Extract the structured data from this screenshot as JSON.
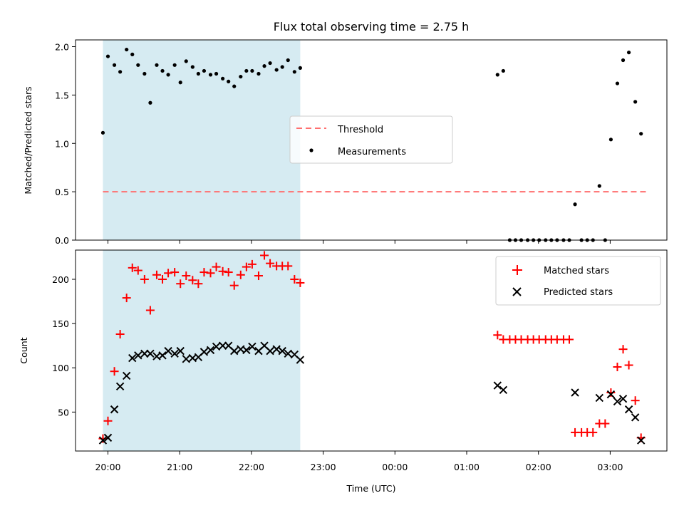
{
  "chart_data": [
    {
      "type": "scatter",
      "title": "Flux total observing time = 2.75 h",
      "xlabel": "",
      "ylabel": "Matched/Predicted stars",
      "ylim": [
        0,
        2.07
      ],
      "yticks": [
        "0.0",
        "0.5",
        "1.0",
        "1.5",
        "2.0"
      ],
      "x_unit": "hours since 20:00 UTC",
      "shaded_region": {
        "x0": -0.07,
        "x1": 2.68,
        "color": "#add8e6"
      },
      "legend": {
        "location": "center",
        "entries": [
          "Threshold",
          "Measurements"
        ]
      },
      "threshold": {
        "name": "Threshold",
        "y": 0.5,
        "x0": -0.07,
        "x1": 7.5,
        "color": "#ff6f6f",
        "style": "dashed"
      },
      "series": [
        {
          "name": "Measurements",
          "marker": "dot",
          "color": "#000000",
          "points": [
            [
              -0.07,
              1.11
            ],
            [
              0.0,
              1.9
            ],
            [
              0.09,
              1.81
            ],
            [
              0.17,
              1.74
            ],
            [
              0.26,
              1.97
            ],
            [
              0.34,
              1.92
            ],
            [
              0.42,
              1.81
            ],
            [
              0.51,
              1.72
            ],
            [
              0.59,
              1.42
            ],
            [
              0.68,
              1.81
            ],
            [
              0.76,
              1.75
            ],
            [
              0.84,
              1.71
            ],
            [
              0.93,
              1.81
            ],
            [
              1.01,
              1.63
            ],
            [
              1.09,
              1.85
            ],
            [
              1.18,
              1.79
            ],
            [
              1.26,
              1.72
            ],
            [
              1.34,
              1.75
            ],
            [
              1.43,
              1.71
            ],
            [
              1.51,
              1.72
            ],
            [
              1.6,
              1.67
            ],
            [
              1.68,
              1.64
            ],
            [
              1.76,
              1.59
            ],
            [
              1.85,
              1.69
            ],
            [
              1.93,
              1.75
            ],
            [
              2.01,
              1.75
            ],
            [
              2.1,
              1.72
            ],
            [
              2.18,
              1.8
            ],
            [
              2.26,
              1.83
            ],
            [
              2.35,
              1.76
            ],
            [
              2.43,
              1.79
            ],
            [
              2.51,
              1.86
            ],
            [
              2.6,
              1.74
            ],
            [
              2.68,
              1.78
            ],
            [
              5.43,
              1.71
            ],
            [
              5.51,
              1.75
            ],
            [
              5.6,
              0.0
            ],
            [
              5.68,
              0.0
            ],
            [
              5.76,
              0.0
            ],
            [
              5.85,
              0.0
            ],
            [
              5.93,
              0.0
            ],
            [
              6.01,
              0.0
            ],
            [
              6.1,
              0.0
            ],
            [
              6.18,
              0.0
            ],
            [
              6.26,
              0.0
            ],
            [
              6.35,
              0.0
            ],
            [
              6.43,
              0.0
            ],
            [
              6.51,
              0.37
            ],
            [
              6.6,
              0.0
            ],
            [
              6.68,
              0.0
            ],
            [
              6.76,
              0.0
            ],
            [
              6.85,
              0.56
            ],
            [
              6.93,
              0.0
            ],
            [
              7.01,
              1.04
            ],
            [
              7.1,
              1.62
            ],
            [
              7.18,
              1.86
            ],
            [
              7.26,
              1.94
            ],
            [
              7.35,
              1.43
            ],
            [
              7.43,
              1.1
            ]
          ]
        }
      ]
    },
    {
      "type": "scatter",
      "title": "",
      "xlabel": "Time (UTC)",
      "ylabel": "Count",
      "ylim": [
        6,
        233
      ],
      "yticks": [
        "50",
        "100",
        "150",
        "200"
      ],
      "xticks": [
        "20:00",
        "21:00",
        "22:00",
        "23:00",
        "00:00",
        "01:00",
        "02:00",
        "03:00"
      ],
      "x_unit": "hours since 20:00 UTC",
      "shaded_region": {
        "x0": -0.07,
        "x1": 2.68,
        "color": "#add8e6"
      },
      "legend": {
        "location": "upper right",
        "entries": [
          "Matched stars",
          "Predicted stars"
        ]
      },
      "series": [
        {
          "name": "Matched stars",
          "marker": "plus",
          "color": "#ff0000",
          "points": [
            [
              -0.07,
              20
            ],
            [
              0.0,
              40
            ],
            [
              0.09,
              96
            ],
            [
              0.17,
              138
            ],
            [
              0.26,
              179
            ],
            [
              0.34,
              213
            ],
            [
              0.42,
              210
            ],
            [
              0.51,
              200
            ],
            [
              0.59,
              165
            ],
            [
              0.68,
              205
            ],
            [
              0.76,
              200
            ],
            [
              0.84,
              207
            ],
            [
              0.93,
              208
            ],
            [
              1.01,
              195
            ],
            [
              1.09,
              204
            ],
            [
              1.18,
              199
            ],
            [
              1.26,
              195
            ],
            [
              1.34,
              208
            ],
            [
              1.43,
              207
            ],
            [
              1.51,
              214
            ],
            [
              1.6,
              209
            ],
            [
              1.68,
              208
            ],
            [
              1.76,
              193
            ],
            [
              1.85,
              205
            ],
            [
              1.93,
              214
            ],
            [
              2.01,
              217
            ],
            [
              2.1,
              204
            ],
            [
              2.18,
              227
            ],
            [
              2.26,
              218
            ],
            [
              2.35,
              215
            ],
            [
              2.43,
              215
            ],
            [
              2.51,
              215
            ],
            [
              2.6,
              200
            ],
            [
              2.68,
              196
            ],
            [
              5.43,
              137
            ],
            [
              5.51,
              132
            ],
            [
              5.6,
              132
            ],
            [
              5.68,
              132
            ],
            [
              5.76,
              132
            ],
            [
              5.85,
              132
            ],
            [
              5.93,
              132
            ],
            [
              6.01,
              132
            ],
            [
              6.1,
              132
            ],
            [
              6.18,
              132
            ],
            [
              6.26,
              132
            ],
            [
              6.35,
              132
            ],
            [
              6.43,
              132
            ],
            [
              6.51,
              27
            ],
            [
              6.6,
              27
            ],
            [
              6.68,
              27
            ],
            [
              6.76,
              27
            ],
            [
              6.85,
              37
            ],
            [
              6.93,
              37
            ],
            [
              7.01,
              72
            ],
            [
              7.1,
              101
            ],
            [
              7.18,
              121
            ],
            [
              7.26,
              103
            ],
            [
              7.35,
              63
            ],
            [
              7.43,
              21
            ]
          ]
        },
        {
          "name": "Predicted stars",
          "marker": "x",
          "color": "#000000",
          "points": [
            [
              -0.07,
              18
            ],
            [
              0.0,
              21
            ],
            [
              0.09,
              53
            ],
            [
              0.17,
              79
            ],
            [
              0.26,
              91
            ],
            [
              0.34,
              111
            ],
            [
              0.42,
              114
            ],
            [
              0.51,
              116
            ],
            [
              0.59,
              116
            ],
            [
              0.68,
              113
            ],
            [
              0.76,
              114
            ],
            [
              0.84,
              119
            ],
            [
              0.93,
              116
            ],
            [
              1.01,
              119
            ],
            [
              1.09,
              110
            ],
            [
              1.18,
              111
            ],
            [
              1.26,
              112
            ],
            [
              1.34,
              118
            ],
            [
              1.43,
              120
            ],
            [
              1.51,
              124
            ],
            [
              1.6,
              125
            ],
            [
              1.68,
              125
            ],
            [
              1.76,
              119
            ],
            [
              1.85,
              121
            ],
            [
              1.93,
              120
            ],
            [
              2.01,
              124
            ],
            [
              2.1,
              119
            ],
            [
              2.18,
              125
            ],
            [
              2.26,
              119
            ],
            [
              2.35,
              121
            ],
            [
              2.43,
              119
            ],
            [
              2.51,
              116
            ],
            [
              2.6,
              115
            ],
            [
              2.68,
              109
            ],
            [
              5.43,
              80
            ],
            [
              5.51,
              75
            ],
            [
              6.51,
              72
            ],
            [
              6.85,
              66
            ],
            [
              7.01,
              70
            ],
            [
              7.1,
              62
            ],
            [
              7.18,
              65
            ],
            [
              7.26,
              53
            ],
            [
              7.35,
              44
            ],
            [
              7.43,
              18
            ]
          ]
        }
      ]
    }
  ]
}
